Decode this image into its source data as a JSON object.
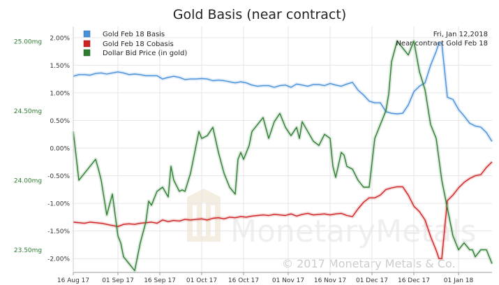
{
  "chart_data": {
    "type": "line",
    "title": "Gold Basis (near contract)",
    "annotations": [
      "Fri, Jan 12,2018",
      "Near contract Gold Feb 18"
    ],
    "watermark": {
      "brand": "MonetaryMetals",
      "copyright": "© 2017 Monetary Metals & Co."
    },
    "x_tick_labels": [
      "16 Aug 17",
      "01 Sep 17",
      "16 Sep 17",
      "01 Oct 17",
      "16 Oct 17",
      "01 Nov 17",
      "16 Nov 17",
      "01 Dec 17",
      "16 Dec 17",
      "01 Jan 18"
    ],
    "x_domain": [
      0,
      150
    ],
    "x_ticks": [
      0,
      16,
      31,
      46,
      61,
      77,
      92,
      107,
      122,
      138
    ],
    "y_left": {
      "ticks": [
        2.0,
        1.5,
        1.0,
        0.5,
        0.0,
        -0.5,
        -1.0,
        -1.5,
        -2.0
      ],
      "labels": [
        "2.00%",
        "1.50%",
        "1.00%",
        "0.50%",
        "0.00%",
        "-0.50%",
        "-1.00%",
        "-1.50%",
        "-2.00%"
      ],
      "range": [
        -2.25,
        2.2
      ]
    },
    "y_right": {
      "ticks": [
        25.0,
        24.5,
        24.0,
        23.5
      ],
      "labels": [
        "25.00mg",
        "24.50mg",
        "24.00mg",
        "23.50mg"
      ],
      "range": [
        23.3375,
        25.1042
      ]
    },
    "colors": {
      "basis": "#4a90d9",
      "cobasis": "#cc2222",
      "dollar": "#2e7d32",
      "axis_text_right": "#2e7d32",
      "grid": "#e6e6e6"
    },
    "series": [
      {
        "name": "Gold Feb 18 Basis",
        "key": "basis",
        "x": [
          0,
          2,
          4,
          6,
          8,
          10,
          12,
          14,
          16,
          18,
          20,
          22,
          24,
          26,
          28,
          30,
          32,
          34,
          36,
          38,
          40,
          42,
          44,
          46,
          48,
          50,
          52,
          54,
          56,
          58,
          60,
          62,
          64,
          66,
          68,
          70,
          72,
          74,
          76,
          78,
          80,
          82,
          84,
          86,
          88,
          90,
          92,
          94,
          96,
          98,
          100,
          102,
          104,
          106,
          108,
          110,
          112,
          114,
          116,
          118,
          120,
          122,
          124,
          126,
          128,
          130,
          131,
          132,
          134,
          136,
          138,
          140,
          142,
          144,
          146,
          148,
          150
        ],
        "values": [
          1.3,
          1.33,
          1.33,
          1.32,
          1.35,
          1.36,
          1.34,
          1.36,
          1.38,
          1.36,
          1.33,
          1.34,
          1.33,
          1.31,
          1.31,
          1.31,
          1.25,
          1.28,
          1.3,
          1.28,
          1.24,
          1.25,
          1.25,
          1.26,
          1.25,
          1.22,
          1.23,
          1.22,
          1.2,
          1.18,
          1.2,
          1.18,
          1.14,
          1.12,
          1.13,
          1.13,
          1.1,
          1.13,
          1.14,
          1.1,
          1.16,
          1.14,
          1.12,
          1.15,
          1.15,
          1.13,
          1.17,
          1.14,
          1.12,
          1.16,
          1.19,
          1.05,
          0.96,
          0.85,
          0.82,
          0.82,
          0.66,
          0.63,
          0.62,
          0.63,
          0.78,
          1.02,
          1.12,
          1.18,
          1.5,
          1.75,
          1.9,
          1.9,
          0.92,
          0.88,
          0.7,
          0.58,
          0.45,
          0.4,
          0.38,
          0.28,
          0.12
        ]
      },
      {
        "name": "Gold Feb 18 Cobasis",
        "key": "cobasis",
        "x": [
          0,
          2,
          4,
          6,
          8,
          10,
          12,
          14,
          16,
          18,
          20,
          22,
          24,
          26,
          28,
          30,
          32,
          34,
          36,
          38,
          40,
          42,
          44,
          46,
          48,
          50,
          52,
          54,
          56,
          58,
          60,
          62,
          64,
          66,
          68,
          70,
          72,
          74,
          76,
          78,
          80,
          82,
          84,
          86,
          88,
          90,
          92,
          94,
          96,
          98,
          100,
          102,
          104,
          106,
          108,
          110,
          112,
          114,
          116,
          118,
          120,
          122,
          124,
          126,
          128,
          130,
          131,
          132,
          134,
          136,
          138,
          140,
          142,
          144,
          146,
          148,
          150
        ],
        "values": [
          -1.34,
          -1.35,
          -1.36,
          -1.34,
          -1.35,
          -1.36,
          -1.38,
          -1.4,
          -1.42,
          -1.38,
          -1.37,
          -1.38,
          -1.36,
          -1.35,
          -1.34,
          -1.36,
          -1.3,
          -1.33,
          -1.31,
          -1.32,
          -1.29,
          -1.3,
          -1.29,
          -1.28,
          -1.3,
          -1.27,
          -1.26,
          -1.28,
          -1.25,
          -1.26,
          -1.24,
          -1.25,
          -1.23,
          -1.22,
          -1.21,
          -1.22,
          -1.2,
          -1.21,
          -1.22,
          -1.19,
          -1.23,
          -1.2,
          -1.18,
          -1.21,
          -1.2,
          -1.19,
          -1.21,
          -1.19,
          -1.18,
          -1.22,
          -1.24,
          -1.1,
          -0.98,
          -0.9,
          -0.9,
          -0.85,
          -0.75,
          -0.72,
          -0.7,
          -0.7,
          -0.85,
          -1.05,
          -1.15,
          -1.3,
          -1.6,
          -1.85,
          -2.0,
          -2.0,
          -0.95,
          -0.85,
          -0.72,
          -0.62,
          -0.55,
          -0.5,
          -0.48,
          -0.35,
          -0.25
        ]
      },
      {
        "name": "Dollar Bid Price (in gold)",
        "key": "dollar",
        "axis": "right",
        "x": [
          0,
          2,
          4,
          6,
          8,
          9,
          10,
          12,
          14,
          16,
          17,
          18,
          20,
          22,
          24,
          26,
          27,
          28,
          30,
          32,
          34,
          35,
          36,
          38,
          39,
          40,
          42,
          44,
          45,
          46,
          48,
          50,
          52,
          54,
          55,
          56,
          58,
          59,
          60,
          61,
          62,
          63,
          64,
          66,
          68,
          70,
          72,
          74,
          76,
          78,
          80,
          81,
          82,
          84,
          86,
          88,
          90,
          92,
          93,
          94,
          96,
          97,
          98,
          100,
          102,
          104,
          106,
          108,
          110,
          112,
          113,
          114,
          116,
          118,
          120,
          122,
          124,
          126,
          128,
          130,
          132,
          134,
          136,
          138,
          140,
          142,
          143,
          144,
          146,
          148,
          150
        ],
        "values": [
          24.35,
          24.0,
          24.05,
          24.1,
          24.15,
          24.08,
          24.0,
          23.75,
          23.9,
          23.6,
          23.55,
          23.45,
          23.4,
          23.35,
          23.55,
          23.7,
          23.85,
          23.82,
          23.92,
          23.95,
          23.88,
          24.1,
          24.0,
          23.92,
          23.93,
          23.92,
          24.05,
          24.25,
          24.35,
          24.3,
          24.32,
          24.38,
          24.2,
          24.05,
          24.0,
          23.95,
          23.9,
          24.15,
          24.2,
          24.15,
          24.2,
          24.25,
          24.35,
          24.4,
          24.45,
          24.3,
          24.42,
          24.48,
          24.38,
          24.32,
          24.38,
          24.3,
          24.42,
          24.35,
          24.28,
          24.25,
          24.33,
          24.3,
          24.1,
          24.02,
          24.2,
          24.18,
          24.1,
          24.08,
          24.0,
          23.95,
          23.95,
          24.3,
          24.4,
          24.5,
          24.62,
          24.85,
          25.0,
          24.95,
          24.9,
          25.0,
          24.78,
          24.65,
          24.4,
          24.3,
          24.0,
          23.8,
          23.6,
          23.5,
          23.55,
          23.5,
          23.5,
          23.45,
          23.5,
          23.5,
          23.4
        ]
      }
    ]
  }
}
